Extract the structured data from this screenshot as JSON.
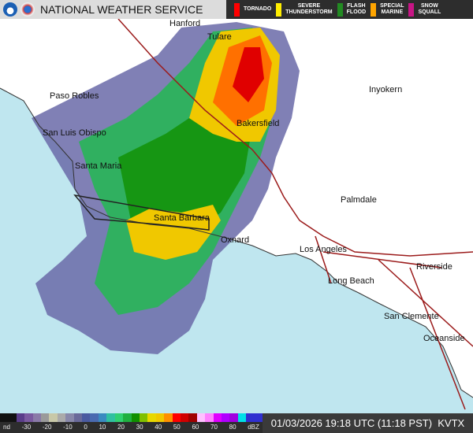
{
  "header": {
    "title": "NATIONAL WEATHER SERVICE",
    "warnings": [
      {
        "label": "TORNADO",
        "color": "#ff0000"
      },
      {
        "label": "SEVERE\nTHUNDERSTORM",
        "color": "#ffee00"
      },
      {
        "label": "FLASH\nFLOOD",
        "color": "#228b22"
      },
      {
        "label": "SPECIAL\nMARINE",
        "color": "#ffa500"
      },
      {
        "label": "SNOW\nSQUALL",
        "color": "#c71585"
      }
    ]
  },
  "map": {
    "cities": [
      "Hanford",
      "Tulare",
      "Paso Robles",
      "Inyokern",
      "Bakersfield",
      "San Luis Obispo",
      "Santa Maria",
      "Palmdale",
      "Santa Barbara",
      "Oxnard",
      "Los Angeles",
      "Riverside",
      "Long Beach",
      "San Clemente",
      "Oceanside"
    ],
    "colors": {
      "ocean": "#bfe6ef",
      "land": "#ffffff"
    }
  },
  "footer": {
    "ticks": [
      "nd",
      "-30",
      "-20",
      "-10",
      "0",
      "10",
      "20",
      "30",
      "40",
      "50",
      "60",
      "70",
      "80",
      "dBZ"
    ],
    "colors": [
      "#111",
      "#111",
      "#5a3d8a",
      "#7a5aa0",
      "#8a7aa8",
      "#9a9a9a",
      "#c8c8a8",
      "#aaaaaa",
      "#8888aa",
      "#6a6a9a",
      "#4a5aa0",
      "#4a6ab0",
      "#3a8ac0",
      "#30c0a0",
      "#30d070",
      "#20b040",
      "#109000",
      "#80c000",
      "#e8d800",
      "#f0c800",
      "#ff9000",
      "#ff0000",
      "#d00000",
      "#a00000",
      "#ffc0ff",
      "#ff80ff",
      "#e000ff",
      "#b000ff",
      "#a000e0",
      "#00e0e8",
      "#3030d0",
      "#3030d0"
    ],
    "timestamp": "01/03/2026 19:18 UTC (11:18 PST)",
    "station": "KVTX"
  }
}
